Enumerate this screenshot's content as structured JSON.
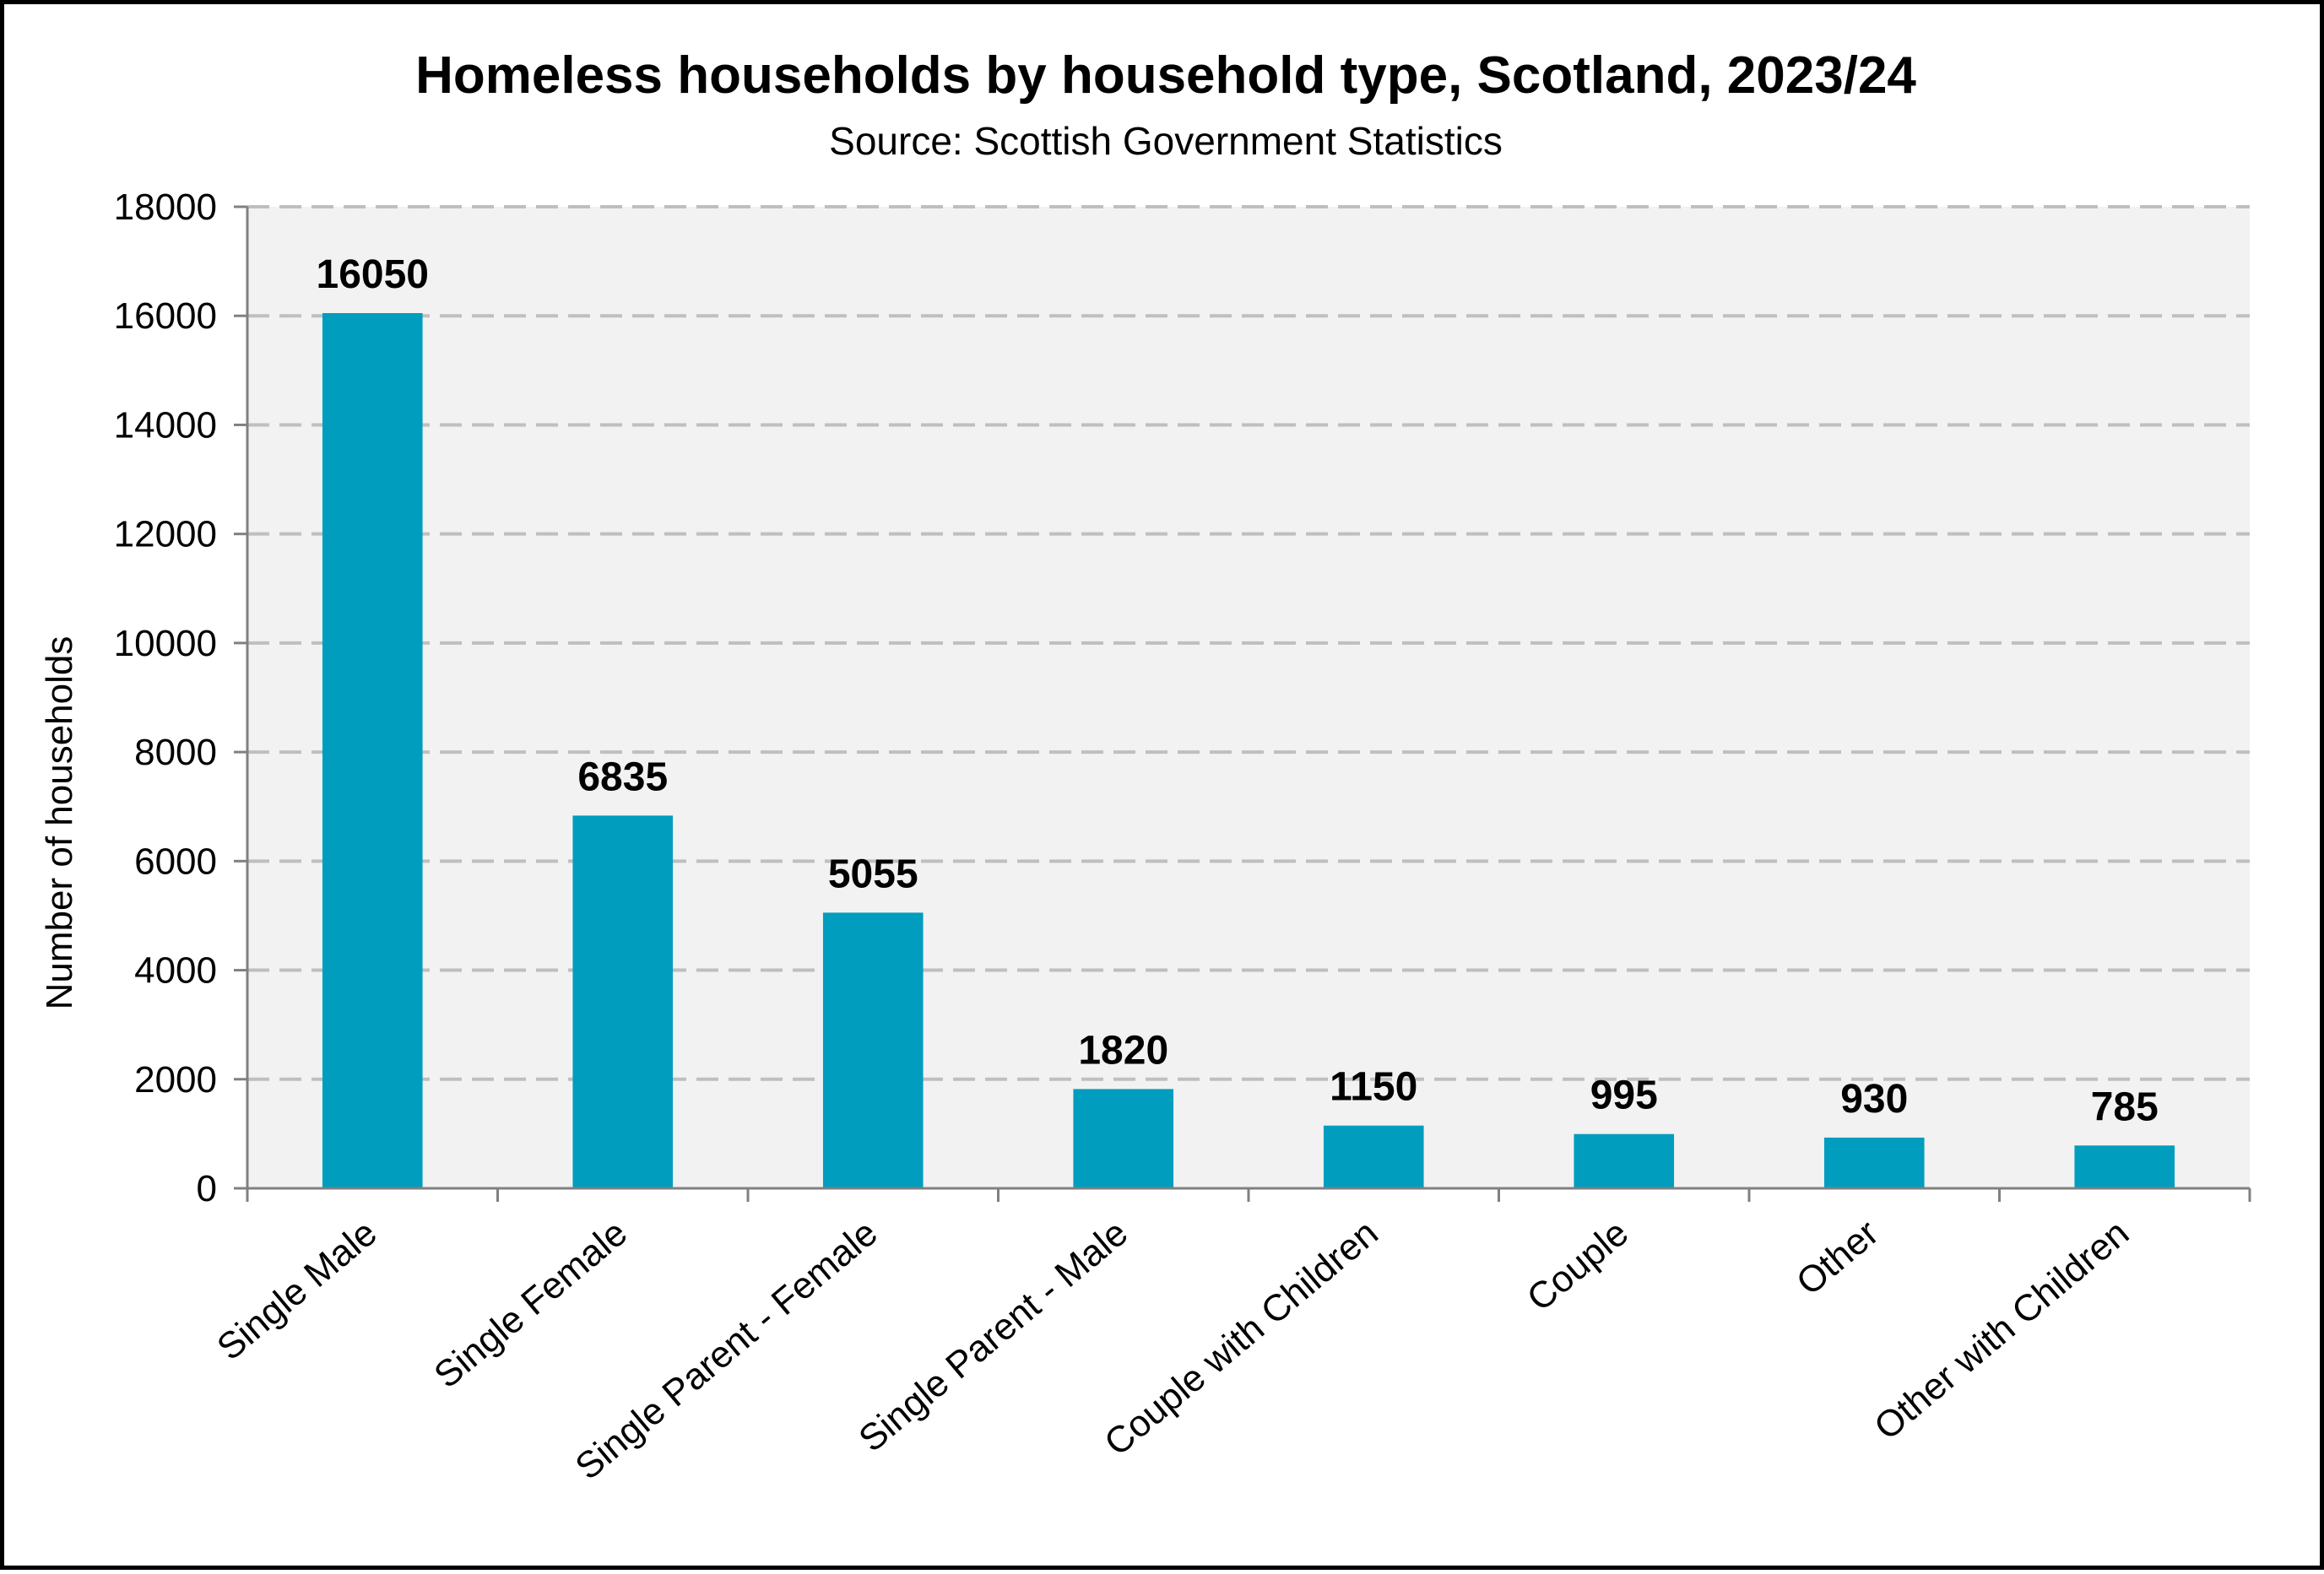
{
  "chart_data": {
    "type": "bar",
    "title": "Homeless households by household type, Scotland, 2023/24",
    "subtitle": "Source: Scottish Government Statistics",
    "xlabel": "",
    "ylabel": "Number of  households",
    "ylim": [
      0,
      18000
    ],
    "yticks": [
      0,
      2000,
      4000,
      6000,
      8000,
      10000,
      12000,
      14000,
      16000,
      18000
    ],
    "categories": [
      "Single Male",
      "Single Female",
      "Single Parent - Female",
      "Single Parent - Male",
      "Couple with Children",
      "Couple",
      "Other",
      "Other with Children"
    ],
    "values": [
      16050,
      6835,
      5055,
      1820,
      1150,
      995,
      930,
      785
    ],
    "data_labels": [
      "16050",
      "6835",
      "5055",
      "1820",
      "1150",
      "995",
      "930",
      "785"
    ],
    "grid": true,
    "legend": "none",
    "colors": {
      "bar": "#009DBF",
      "plot_background": "#F2F2F2",
      "grid": "#BFBFBF",
      "axis": "#808080"
    }
  }
}
